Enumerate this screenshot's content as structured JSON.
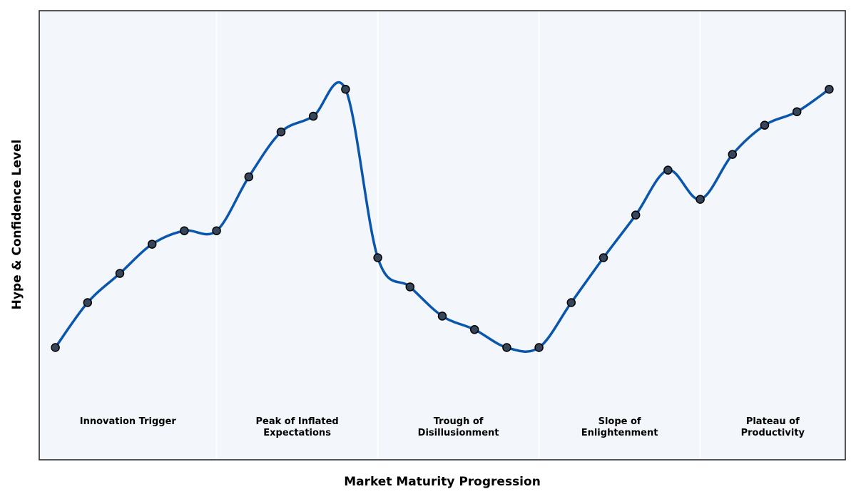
{
  "chart_data": {
    "type": "line",
    "title": "",
    "xlabel": "Market Maturity Progression",
    "ylabel": "Hype & Confidence Level",
    "ylim": [
      0,
      100
    ],
    "xlim": [
      -0.5,
      24.5
    ],
    "grid": false,
    "legend": "none",
    "x": [
      0,
      1,
      2,
      3,
      4,
      5,
      6,
      7,
      8,
      9,
      10,
      11,
      12,
      13,
      14,
      15,
      16,
      17,
      18,
      19,
      20,
      21,
      22,
      23,
      24
    ],
    "series": [
      {
        "values": [
          25,
          35,
          41.5,
          48,
          51,
          51,
          63,
          73,
          76.5,
          82.5,
          45,
          38.5,
          32,
          29,
          25,
          25,
          35,
          45,
          54.5,
          64.5,
          58,
          68,
          74.5,
          77.5,
          82.5
        ]
      }
    ],
    "phases": [
      {
        "label_lines": [
          "Innovation Trigger"
        ],
        "start": -0.5,
        "end": 5
      },
      {
        "label_lines": [
          "Peak of Inflated",
          "Expectations"
        ],
        "start": 5,
        "end": 10
      },
      {
        "label_lines": [
          "Trough of",
          "Disillusionment"
        ],
        "start": 10,
        "end": 15
      },
      {
        "label_lines": [
          "Slope of",
          "Enlightenment"
        ],
        "start": 15,
        "end": 20
      },
      {
        "label_lines": [
          "Plateau of",
          "Productivity"
        ],
        "start": 20,
        "end": 24.5
      }
    ],
    "colors": {
      "line": "#0a56ad",
      "marker_fill": "#36455a",
      "marker_edge": "#000000",
      "background": "#f3f6fa",
      "divider": "#ffffff",
      "frame": "#2b2b2b"
    }
  }
}
